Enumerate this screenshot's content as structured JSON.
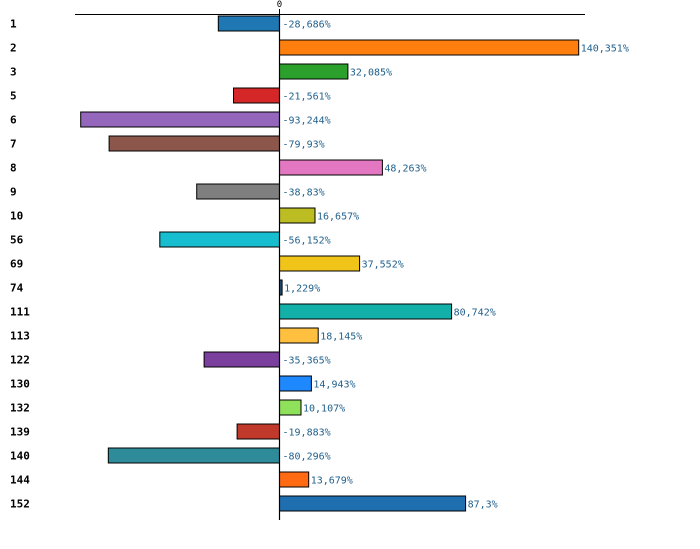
{
  "chart_data": {
    "type": "bar",
    "orientation": "horizontal",
    "title": "",
    "xlabel": "",
    "ylabel": "",
    "xlim": [
      -100,
      150
    ],
    "zero_tick_label": "0",
    "grid": false,
    "categories": [
      "1",
      "2",
      "3",
      "5",
      "6",
      "7",
      "8",
      "9",
      "10",
      "56",
      "69",
      "74",
      "111",
      "113",
      "122",
      "130",
      "132",
      "139",
      "140",
      "144",
      "152"
    ],
    "values": [
      -28.686,
      140.351,
      32.085,
      -21.561,
      -93.244,
      -79.93,
      48.263,
      -38.83,
      16.657,
      -56.152,
      37.552,
      1.229,
      80.742,
      18.145,
      -35.365,
      14.943,
      10.107,
      -19.883,
      -80.296,
      13.679,
      87.3
    ],
    "value_labels": [
      "-28,686%",
      "140,351%",
      "32,085%",
      "-21,561%",
      "-93,244%",
      "-79,93%",
      "48,263%",
      "-38,83%",
      "16,657%",
      "-56,152%",
      "37,552%",
      "1,229%",
      "80,742%",
      "18,145%",
      "-35,365%",
      "14,943%",
      "10,107%",
      "-19,883%",
      "-80,296%",
      "13,679%",
      "87,3%"
    ],
    "colors": [
      "#1f77b4",
      "#ff7f0e",
      "#2ca02c",
      "#d62728",
      "#9467bd",
      "#8c564b",
      "#e377c2",
      "#7f7f7f",
      "#bcbd22",
      "#17becf",
      "#f0c419",
      "#1f4e79",
      "#12b0a8",
      "#ffbf3f",
      "#7b3f9e",
      "#1e88ff",
      "#8fe05a",
      "#c0392b",
      "#2e8b9a",
      "#ff6a13",
      "#1f6fb0"
    ]
  }
}
